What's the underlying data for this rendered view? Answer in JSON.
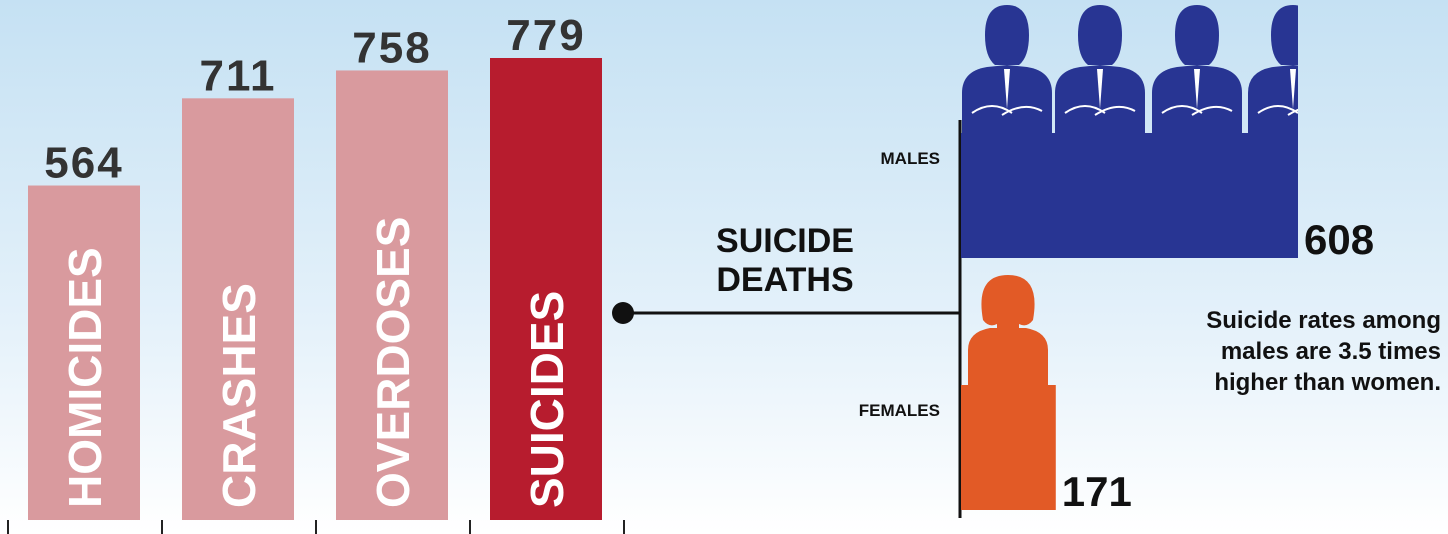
{
  "chart_data": [
    {
      "type": "bar",
      "categories": [
        "HOMICIDES",
        "CRASHES",
        "OVERDOSES",
        "SUICIDES"
      ],
      "values": [
        564,
        711,
        758,
        779
      ],
      "colors": [
        "#d99a9e",
        "#d99a9e",
        "#d99a9e",
        "#b71c2e"
      ]
    },
    {
      "type": "barh",
      "title": "SUICIDE DEATHS",
      "categories": [
        "MALES",
        "FEMALES"
      ],
      "values": [
        608,
        171
      ],
      "colors": [
        "#283593",
        "#e25a26"
      ],
      "annotation": "Suicide rates among males are 3.5 times higher than women."
    }
  ]
}
